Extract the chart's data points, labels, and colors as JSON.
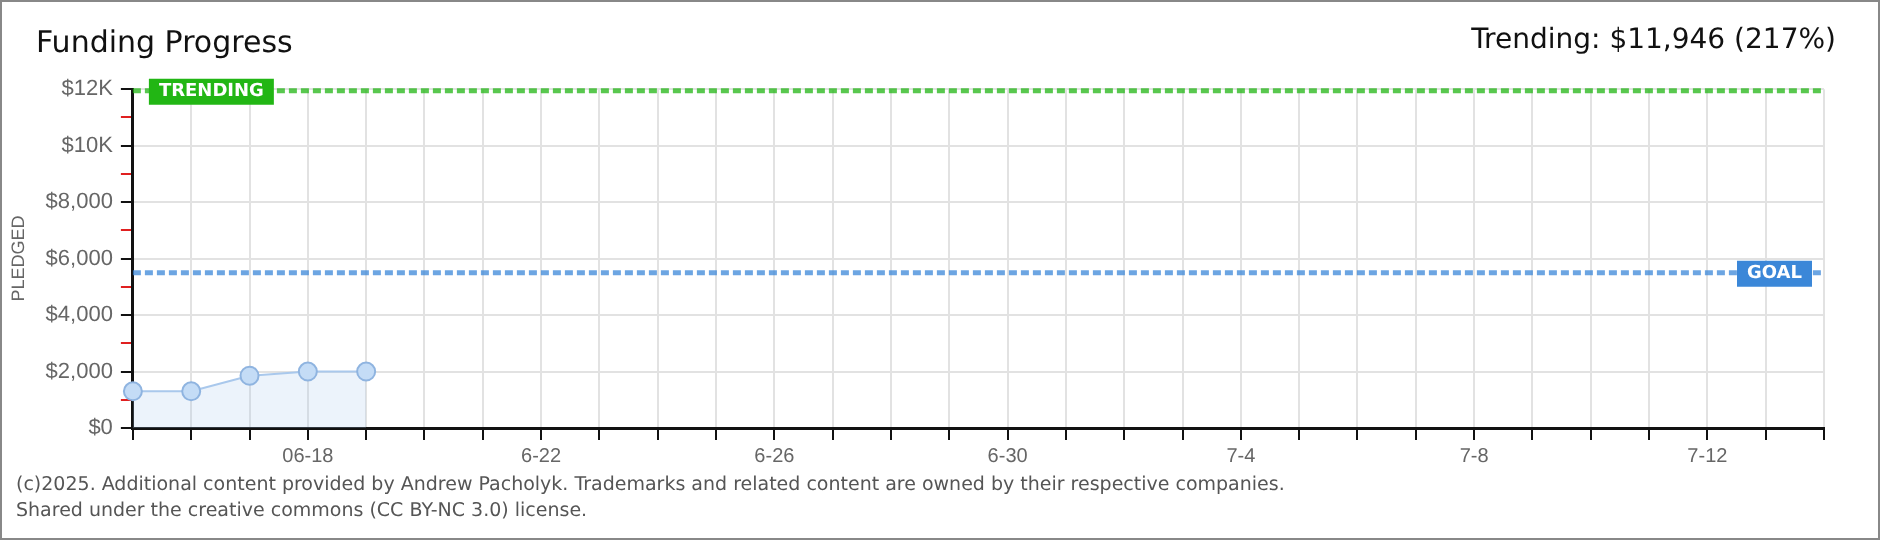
{
  "chart_data": {
    "type": "area",
    "title": "Funding Progress",
    "subtitle": "Trending: $11,946 (217%)",
    "ylabel": "PLEDGED",
    "categories": [
      null,
      null,
      null,
      "06-18",
      null,
      null,
      null,
      "6-22",
      null,
      null,
      null,
      "6-26",
      null,
      null,
      null,
      "6-30",
      null,
      null,
      null,
      "7-4",
      null,
      null,
      null,
      "7-8",
      null,
      null,
      null,
      "7-12",
      null,
      null
    ],
    "series": [
      {
        "color": "#a9c8ec",
        "values": [
          1300,
          1300,
          1850,
          2000,
          2000,
          null,
          null,
          null,
          null,
          null,
          null,
          null,
          null,
          null,
          null,
          null,
          null,
          null,
          null,
          null,
          null,
          null,
          null,
          null,
          null,
          null,
          null,
          null,
          null,
          null
        ]
      }
    ],
    "ylim": [
      0,
      12000
    ],
    "yticks": [
      {
        "value": 0,
        "label": "$0"
      },
      {
        "value": 1000,
        "label": null
      },
      {
        "value": 2000,
        "label": "$2,000"
      },
      {
        "value": 3000,
        "label": null
      },
      {
        "value": 4000,
        "label": "$4,000"
      },
      {
        "value": 5000,
        "label": null
      },
      {
        "value": 6000,
        "label": "$6,000"
      },
      {
        "value": 7000,
        "label": null
      },
      {
        "value": 8000,
        "label": "$8,000"
      },
      {
        "value": 9000,
        "label": null
      },
      {
        "value": 10000,
        "label": "$10K"
      },
      {
        "value": 11000,
        "label": null
      },
      {
        "value": 12000,
        "label": "$12K"
      }
    ],
    "ref_lines": [
      {
        "axis": "y",
        "value": 11946,
        "label": "TRENDING",
        "color": "#22b614",
        "line_style": "dashed"
      },
      {
        "axis": "y",
        "value": 5500,
        "label": "GOAL",
        "color": "#3b87d8",
        "line_style": "dashed"
      }
    ],
    "grid": true,
    "legend": false,
    "marker": "circle",
    "annotations": [
      "(c)2025. Additional content provided by Andrew Pacholyk. Trademarks and related content are owned by their respective companies.",
      "Shared under the creative commons (CC BY-NC 3.0) license."
    ]
  }
}
